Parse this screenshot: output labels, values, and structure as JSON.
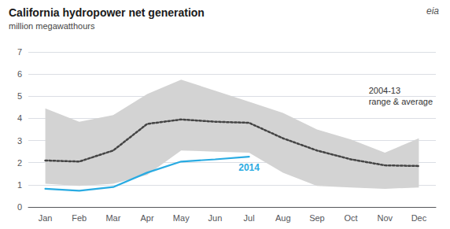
{
  "chart_data": {
    "type": "line",
    "title": "California hydropower net generation",
    "subtitle": "million megawatthours",
    "categories": [
      "Jan",
      "Feb",
      "Mar",
      "Apr",
      "May",
      "Jun",
      "Jul",
      "Aug",
      "Sep",
      "Oct",
      "Nov",
      "Dec"
    ],
    "series": [
      {
        "type": "band",
        "color": "#d3d3d3",
        "low": [
          1.05,
          0.95,
          1.05,
          1.45,
          2.55,
          2.5,
          2.45,
          1.55,
          0.95,
          0.88,
          0.82,
          0.88
        ],
        "high": [
          4.45,
          3.85,
          4.15,
          5.1,
          5.75,
          5.25,
          4.75,
          4.25,
          3.5,
          3.05,
          2.45,
          3.1
        ]
      },
      {
        "type": "line",
        "color": "#444444",
        "line_style": "dotted",
        "values": [
          2.1,
          2.05,
          2.55,
          3.75,
          3.95,
          3.85,
          3.8,
          3.1,
          2.55,
          2.15,
          1.88,
          1.85
        ]
      },
      {
        "type": "line",
        "color": "#29abe2",
        "line_style": "solid",
        "values": [
          0.82,
          0.73,
          0.9,
          1.55,
          2.05,
          2.15,
          2.27,
          null,
          null,
          null,
          null,
          null
        ]
      }
    ],
    "annotations": [
      "2014",
      "2004-13\nrange & average",
      "eia"
    ],
    "ylim": [
      0,
      7
    ],
    "yticks": [
      0,
      1,
      2,
      3,
      4,
      5,
      6,
      7
    ],
    "grid": true
  }
}
